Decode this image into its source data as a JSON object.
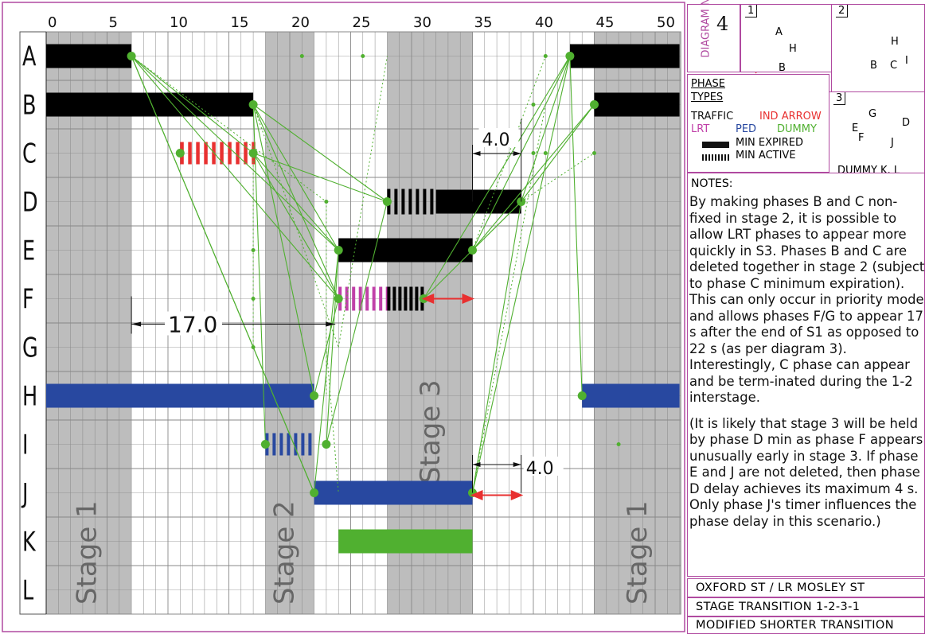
{
  "columns": [
    "0",
    "5",
    "10",
    "15",
    "20",
    "25",
    "30",
    "35",
    "40",
    "45",
    "50"
  ],
  "rows": [
    "A",
    "B",
    "C",
    "D",
    "E",
    "F",
    "G",
    "H",
    "I",
    "J",
    "K",
    "L"
  ],
  "stages": [
    "Stage 1",
    "Stage 2",
    "Stage 3",
    "Stage 1"
  ],
  "dims": {
    "span_17": "17.0",
    "d_4_top": "4.0",
    "d_4_bottom": "4.0"
  },
  "diagram_no": {
    "label": "DIAGRAM No.",
    "value": "4"
  },
  "mini": {
    "box1": {
      "num": "1",
      "letters": [
        "A",
        "H",
        "B"
      ]
    },
    "box2": {
      "num": "2",
      "letters": [
        "H",
        "B",
        "C",
        "I"
      ]
    },
    "box3": {
      "num": "3",
      "letters": [
        "G",
        "D",
        "E",
        "F",
        "J"
      ],
      "caption": "DUMMY K, L"
    }
  },
  "phase_types": {
    "heading": "PHASE TYPES",
    "traffic": "TRAFFIC",
    "ind_arrow": "IND ARROW",
    "lrt": "LRT",
    "ped": "PED",
    "dummy": "DUMMY",
    "min_expired": "MIN EXPIRED",
    "min_active": "MIN ACTIVE"
  },
  "colors": {
    "frame": "#b04aa0",
    "traffic": "#000000",
    "ind_arrow": "#e83030",
    "lrt": "#c040a8",
    "ped": "#2848a0",
    "dummy": "#50b030",
    "stage": "#bdbdbd"
  },
  "notes": {
    "heading": "NOTES:",
    "p1": "By making phases B and C non-fixed in stage 2, it is possible to allow LRT phases to appear more quickly in S3. Phases B and C are deleted together in stage 2 (subject to phase C minimum expiration). This can only occur in priority mode and allows phases F/G to appear 17 s after the end of S1 as opposed to 22 s (as per diagram 3). Interestingly, C phase can appear and be term-inated during the 1-2 interstage.",
    "p2": "(It is likely that stage 3 will be held by phase D min as phase F appears unusually early in stage 3. If phase E and J are not deleted, then phase D delay achieves its maximum 4 s. Only phase J's timer influences the phase delay in this scenario.)"
  },
  "title_block": [
    "OXFORD ST / LR MOSLEY ST",
    "STAGE TRANSITION 1-2-3-1",
    "MODIFIED SHORTER TRANSITION"
  ]
}
